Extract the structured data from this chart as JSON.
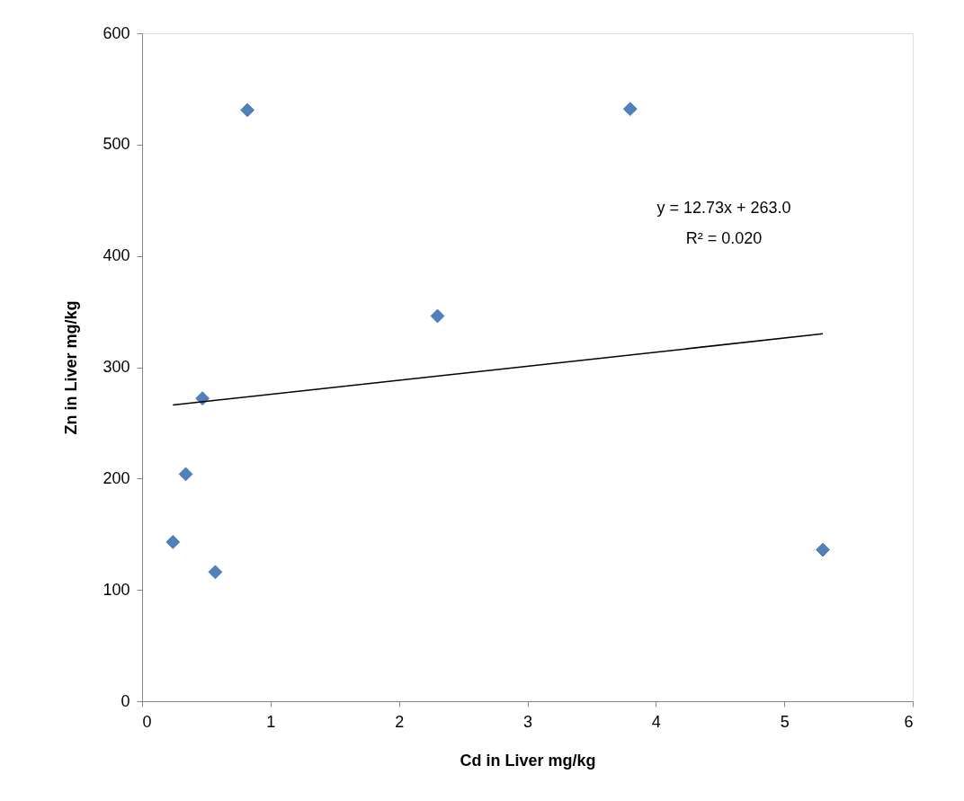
{
  "chart_data": {
    "type": "scatter",
    "xlabel": "Cd in Liver mg/kg",
    "ylabel": "Zn in Liver mg/kg",
    "xlim": [
      0,
      6
    ],
    "xticks": [
      0,
      1,
      2,
      3,
      4,
      5,
      6
    ],
    "ylim": [
      0,
      600
    ],
    "yticks": [
      0,
      100,
      200,
      300,
      400,
      500,
      600
    ],
    "grid": false,
    "marker": "diamond",
    "series": [
      {
        "color": "#4f81bd",
        "x": [
          0.24,
          0.34,
          0.47,
          0.57,
          0.82,
          2.3,
          3.8,
          5.3
        ],
        "values": [
          143,
          204,
          272,
          116,
          531,
          346,
          532,
          136
        ]
      },
      {
        "type": "line",
        "color": "#000000",
        "line_style": "solid",
        "marker": "none",
        "x": [
          0.24,
          5.3
        ],
        "values": [
          266,
          330
        ]
      }
    ],
    "annotations": [
      "y = 12.73x + 263.0",
      "R² = 0.020"
    ]
  }
}
